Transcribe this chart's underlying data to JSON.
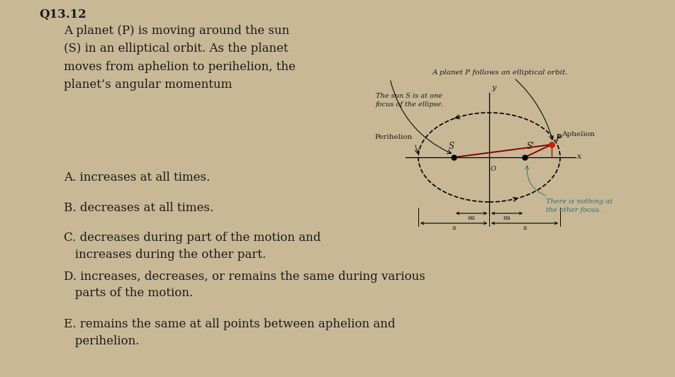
{
  "bg_color": "#c8b896",
  "title": "Q13.12",
  "question_text": "A planet (P) is moving around the sun\n(S) in an elliptical orbit. As the planet\nmoves from aphelion to perihelion, the\nplanet’s angular momentum",
  "answers": [
    "A. increases at all times.",
    "B. decreases at all times.",
    "C. decreases during part of the motion and\n   increases during the other part.",
    "D. increases, decreases, or remains the same during various\n   parts of the motion.",
    "E. remains the same at all points between aphelion and\n   perihelion."
  ],
  "diagram_label_top": "A planet P follows an elliptical orbit.",
  "diagram_label_sun": "The sun S is at one\nfocus of the ellipse.",
  "diagram_label_perihelion": "Perihelion",
  "diagram_label_aphelion": "Aphelion",
  "diagram_label_other_focus": "There is nothing at\nthe other focus.",
  "font_color": "#1a1a1a",
  "teal_color": "#2a7070"
}
